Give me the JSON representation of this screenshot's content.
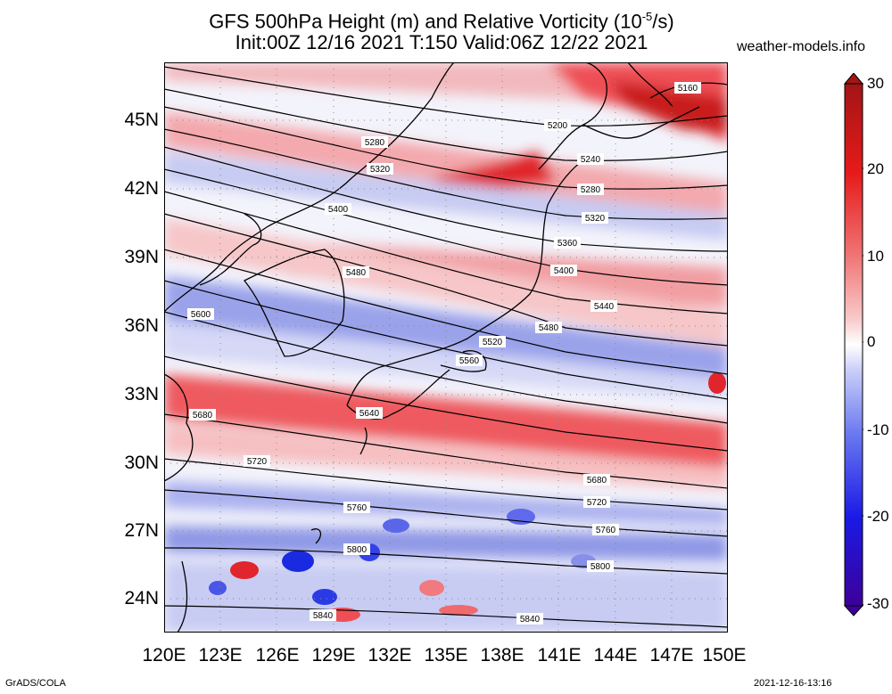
{
  "title_line1_pre": "GFS 500hPa Height (m) and Relative Vorticity (10",
  "title_line1_sup": "-5",
  "title_line1_post": "/s)",
  "title_line2": "Init:00Z 12/16 2021 T:150 Valid:06Z 12/22 2021",
  "site": "weather-models.info",
  "credit": "GrADS/COLA",
  "timestamp": "2021-12-16-13:16",
  "lat_labels": [
    "45N",
    "42N",
    "39N",
    "36N",
    "33N",
    "30N",
    "27N",
    "24N"
  ],
  "lon_labels": [
    "120E",
    "123E",
    "126E",
    "129E",
    "132E",
    "135E",
    "138E",
    "141E",
    "144E",
    "147E",
    "150E"
  ],
  "colorbar": {
    "labels": [
      "30",
      "20",
      "10",
      "0",
      "-10",
      "-20",
      "-30"
    ],
    "min": -30,
    "max": 30,
    "colors": [
      "#3d0099",
      "#1a1ae6",
      "#6b79f0",
      "#c9cdf8",
      "#ffffff",
      "#f8c9c9",
      "#f07575",
      "#e61a1a",
      "#a31515"
    ]
  },
  "contour_labels": [
    "5160",
    "5200",
    "5240",
    "5280",
    "5280",
    "5320",
    "5320",
    "5360",
    "5400",
    "5400",
    "5440",
    "5480",
    "5480",
    "5520",
    "5560",
    "5600",
    "5640",
    "5680",
    "5680",
    "5720",
    "5720",
    "5760",
    "5760",
    "5800",
    "5800",
    "5840",
    "5840"
  ]
}
